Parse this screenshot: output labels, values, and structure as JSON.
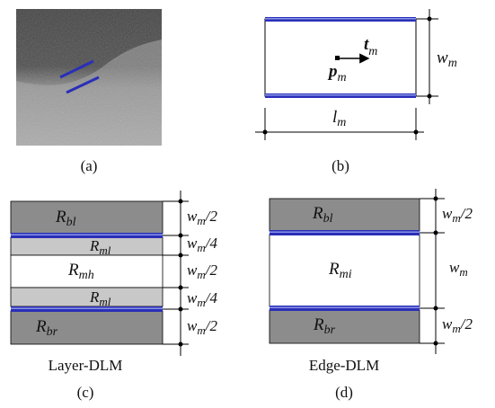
{
  "panels": {
    "a": {
      "caption": "(a)"
    },
    "b": {
      "caption": "(b)",
      "t_sym": "t",
      "t_sub": "m",
      "p_sym": "p",
      "p_sub": "m",
      "w_sym": "w",
      "w_sub": "m",
      "l_sym": "l",
      "l_sub": "m"
    },
    "c": {
      "caption": "(c)",
      "name": "Layer-DLM",
      "regions": {
        "bl": {
          "sym": "R",
          "sub": "bl"
        },
        "ml_top": {
          "sym": "R",
          "sub": "ml"
        },
        "mh": {
          "sym": "R",
          "sub": "mh"
        },
        "ml_bot": {
          "sym": "R",
          "sub": "ml"
        },
        "br": {
          "sym": "R",
          "sub": "br"
        }
      },
      "dims": [
        {
          "sym": "w",
          "sub": "m",
          "suffix": "/2"
        },
        {
          "sym": "w",
          "sub": "m",
          "suffix": "/4"
        },
        {
          "sym": "w",
          "sub": "m",
          "suffix": "/2"
        },
        {
          "sym": "w",
          "sub": "m",
          "suffix": "/4"
        },
        {
          "sym": "w",
          "sub": "m",
          "suffix": "/2"
        }
      ]
    },
    "d": {
      "caption": "(d)",
      "name": "Edge-DLM",
      "regions": {
        "bl": {
          "sym": "R",
          "sub": "bl"
        },
        "mi": {
          "sym": "R",
          "sub": "mi"
        },
        "br": {
          "sym": "R",
          "sub": "br"
        }
      },
      "dims": [
        {
          "sym": "w",
          "sub": "m",
          "suffix": "/2"
        },
        {
          "sym": "w",
          "sub": "m",
          "suffix": ""
        },
        {
          "sym": "w",
          "sub": "m",
          "suffix": "/2"
        }
      ]
    }
  },
  "colors": {
    "blue_line": "#2a2fb8",
    "blue_light": "#7a86e0",
    "dark_region": "#8c8c8c",
    "light_region": "#c8c8c8",
    "line": "#000000"
  }
}
